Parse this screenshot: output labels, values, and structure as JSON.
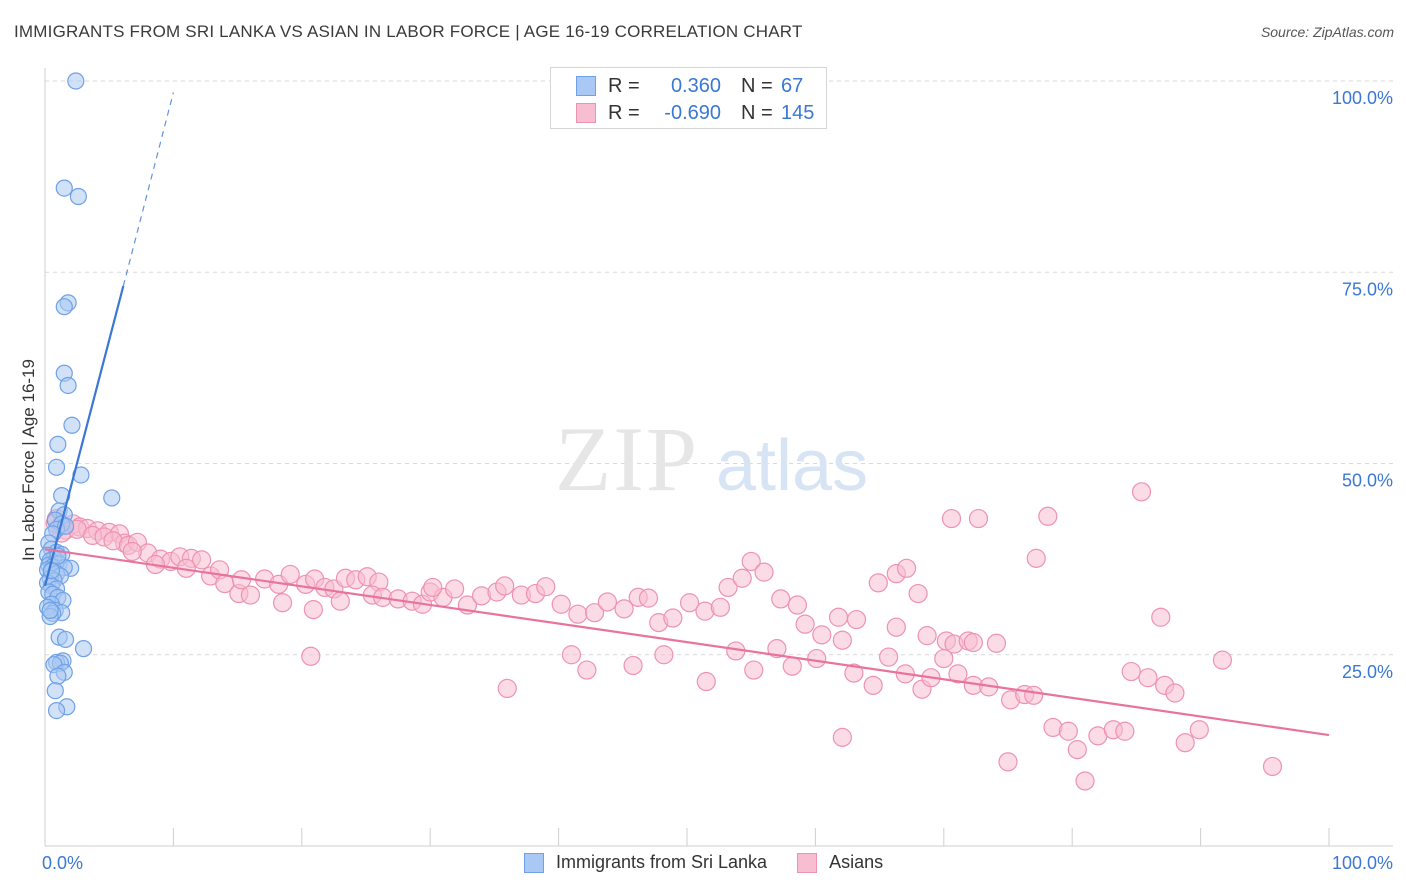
{
  "header": {
    "title": "IMMIGRANTS FROM SRI LANKA VS ASIAN IN LABOR FORCE | AGE 16-19 CORRELATION CHART",
    "source": "Source: ZipAtlas.com"
  },
  "watermark": {
    "zip": "ZIP",
    "atlas": "atlas"
  },
  "legend_top": {
    "rows": [
      {
        "r_label": "R =",
        "r_value": "0.360",
        "n_label": "N =",
        "n_value": "67"
      },
      {
        "r_label": "R =",
        "r_value": "-0.690",
        "n_label": "N =",
        "n_value": "145"
      }
    ]
  },
  "legend_bottom": {
    "items": [
      "Immigrants from Sri Lanka",
      "Asians"
    ]
  },
  "colors": {
    "blue_fill": "#a9c8f3",
    "blue_stroke": "#6fa1e6",
    "blue_line": "#3a78d4",
    "pink_fill": "#f7bdd0",
    "pink_stroke": "#ee92b2",
    "pink_line": "#e8739e",
    "tick_label": "#3a78d4",
    "grid": "#d9d9d9"
  },
  "chart_data": {
    "type": "scatter",
    "title": "IMMIGRANTS FROM SRI LANKA VS ASIAN IN LABOR FORCE | AGE 16-19 CORRELATION CHART",
    "xlabel": "",
    "ylabel": "In Labor Force | Age 16-19",
    "xlim": [
      0,
      100
    ],
    "ylim": [
      0,
      100
    ],
    "x_tick_labels": [
      "0.0%",
      "100.0%"
    ],
    "y_tick_labels": [
      "25.0%",
      "50.0%",
      "75.0%",
      "100.0%"
    ],
    "y_ticks": [
      25,
      50,
      75,
      100
    ],
    "grid": "horizontal dashed",
    "legend_position": "top-center",
    "series": [
      {
        "name": "Immigrants from Sri Lanka",
        "r": 0.36,
        "n": 67,
        "trend": {
          "x0": 0,
          "y0": 34,
          "x1": 6.1,
          "y1": 73.2,
          "dashed_to": [
            10,
            98.5
          ]
        },
        "points": [
          [
            2.4,
            100.0
          ],
          [
            1.5,
            86.0
          ],
          [
            2.6,
            84.9
          ],
          [
            1.8,
            71.0
          ],
          [
            1.5,
            70.5
          ],
          [
            1.5,
            61.8
          ],
          [
            1.8,
            60.2
          ],
          [
            2.1,
            55.0
          ],
          [
            1.0,
            52.5
          ],
          [
            0.9,
            49.5
          ],
          [
            2.8,
            48.5
          ],
          [
            1.3,
            45.8
          ],
          [
            5.2,
            45.5
          ],
          [
            1.1,
            43.8
          ],
          [
            1.5,
            43.3
          ],
          [
            0.8,
            42.6
          ],
          [
            1.3,
            42.1
          ],
          [
            0.9,
            41.4
          ],
          [
            1.6,
            41.8
          ],
          [
            0.6,
            40.8
          ],
          [
            0.3,
            39.6
          ],
          [
            0.5,
            38.8
          ],
          [
            0.9,
            38.4
          ],
          [
            1.3,
            38.1
          ],
          [
            0.2,
            38.0
          ],
          [
            0.7,
            37.6
          ],
          [
            0.4,
            37.3
          ],
          [
            0.8,
            37.0
          ],
          [
            1.1,
            36.9
          ],
          [
            0.3,
            36.7
          ],
          [
            0.6,
            36.5
          ],
          [
            2.0,
            36.3
          ],
          [
            1.5,
            36.4
          ],
          [
            0.2,
            36.1
          ],
          [
            0.5,
            35.9
          ],
          [
            0.9,
            35.6
          ],
          [
            1.2,
            35.3
          ],
          [
            0.4,
            35.0
          ],
          [
            0.7,
            34.7
          ],
          [
            0.2,
            34.4
          ],
          [
            0.5,
            34.0
          ],
          [
            0.9,
            33.6
          ],
          [
            0.3,
            33.2
          ],
          [
            0.6,
            32.9
          ],
          [
            1.0,
            32.5
          ],
          [
            1.4,
            32.1
          ],
          [
            0.5,
            31.6
          ],
          [
            0.2,
            31.2
          ],
          [
            0.8,
            30.8
          ],
          [
            1.3,
            30.5
          ],
          [
            0.6,
            30.4
          ],
          [
            0.4,
            30.0
          ],
          [
            1.1,
            27.3
          ],
          [
            1.6,
            27.0
          ],
          [
            3.0,
            25.8
          ],
          [
            1.4,
            24.2
          ],
          [
            0.9,
            24.0
          ],
          [
            1.2,
            23.9
          ],
          [
            0.7,
            23.7
          ],
          [
            1.5,
            22.7
          ],
          [
            1.0,
            22.2
          ],
          [
            0.8,
            20.3
          ],
          [
            1.7,
            18.2
          ],
          [
            0.9,
            17.7
          ],
          [
            0.4,
            30.8
          ],
          [
            1.0,
            37.9
          ],
          [
            0.5,
            36.0
          ]
        ]
      },
      {
        "name": "Asians",
        "r": -0.69,
        "n": 145,
        "trend": {
          "x0": 0,
          "y0": 38.8,
          "x1": 100,
          "y1": 14.5
        },
        "points": [
          [
            0.9,
            42.8
          ],
          [
            1.2,
            41.9
          ],
          [
            1.6,
            41.3
          ],
          [
            2.2,
            42.1
          ],
          [
            2.7,
            41.7
          ],
          [
            3.3,
            41.5
          ],
          [
            4.1,
            41.2
          ],
          [
            5.0,
            41.0
          ],
          [
            5.8,
            40.8
          ],
          [
            6.2,
            39.6
          ],
          [
            1.3,
            40.9
          ],
          [
            0.8,
            42.2
          ],
          [
            2.5,
            41.4
          ],
          [
            3.7,
            40.6
          ],
          [
            4.6,
            40.4
          ],
          [
            5.3,
            39.9
          ],
          [
            6.5,
            39.3
          ],
          [
            7.2,
            39.7
          ],
          [
            8.0,
            38.3
          ],
          [
            9.0,
            37.5
          ],
          [
            9.8,
            37.2
          ],
          [
            10.5,
            37.8
          ],
          [
            11.4,
            37.6
          ],
          [
            12.2,
            37.4
          ],
          [
            12.9,
            35.3
          ],
          [
            13.6,
            36.1
          ],
          [
            6.8,
            38.5
          ],
          [
            8.6,
            36.8
          ],
          [
            11.0,
            36.3
          ],
          [
            14.0,
            34.3
          ],
          [
            15.1,
            33.0
          ],
          [
            16.0,
            32.8
          ],
          [
            15.3,
            34.8
          ],
          [
            17.1,
            34.9
          ],
          [
            18.2,
            34.2
          ],
          [
            19.1,
            35.5
          ],
          [
            20.3,
            34.2
          ],
          [
            21.0,
            34.9
          ],
          [
            21.8,
            33.8
          ],
          [
            22.5,
            33.6
          ],
          [
            23.4,
            35.0
          ],
          [
            24.2,
            34.8
          ],
          [
            25.1,
            35.2
          ],
          [
            26.0,
            34.5
          ],
          [
            18.5,
            31.8
          ],
          [
            20.9,
            30.9
          ],
          [
            23.0,
            32.0
          ],
          [
            25.5,
            32.8
          ],
          [
            26.3,
            32.5
          ],
          [
            27.5,
            32.3
          ],
          [
            28.6,
            32.0
          ],
          [
            29.4,
            31.6
          ],
          [
            30.0,
            33.2
          ],
          [
            31.0,
            32.5
          ],
          [
            31.9,
            33.6
          ],
          [
            32.9,
            31.5
          ],
          [
            34.0,
            32.7
          ],
          [
            35.2,
            33.2
          ],
          [
            35.8,
            34.0
          ],
          [
            37.1,
            32.8
          ],
          [
            38.2,
            33.0
          ],
          [
            39.0,
            33.9
          ],
          [
            40.2,
            31.6
          ],
          [
            41.5,
            30.3
          ],
          [
            42.8,
            30.5
          ],
          [
            43.8,
            31.9
          ],
          [
            45.1,
            31.0
          ],
          [
            46.2,
            32.5
          ],
          [
            47.0,
            32.4
          ],
          [
            47.8,
            29.2
          ],
          [
            48.9,
            29.8
          ],
          [
            50.2,
            31.8
          ],
          [
            51.4,
            30.7
          ],
          [
            52.6,
            31.2
          ],
          [
            53.2,
            33.8
          ],
          [
            54.3,
            35.0
          ],
          [
            55.0,
            37.2
          ],
          [
            56.0,
            35.8
          ],
          [
            57.3,
            32.3
          ],
          [
            58.6,
            31.5
          ],
          [
            59.2,
            29.0
          ],
          [
            60.5,
            27.6
          ],
          [
            61.8,
            29.9
          ],
          [
            62.1,
            26.9
          ],
          [
            63.2,
            29.6
          ],
          [
            64.9,
            34.4
          ],
          [
            66.3,
            35.6
          ],
          [
            67.1,
            36.3
          ],
          [
            68.0,
            33.0
          ],
          [
            68.7,
            27.5
          ],
          [
            70.2,
            26.8
          ],
          [
            70.8,
            26.4
          ],
          [
            71.9,
            26.8
          ],
          [
            72.3,
            26.6
          ],
          [
            74.1,
            26.5
          ],
          [
            77.2,
            37.6
          ],
          [
            78.1,
            43.1
          ],
          [
            70.6,
            42.8
          ],
          [
            72.7,
            42.8
          ],
          [
            66.3,
            28.6
          ],
          [
            63.0,
            22.6
          ],
          [
            64.5,
            21.0
          ],
          [
            65.7,
            24.7
          ],
          [
            67.0,
            22.5
          ],
          [
            68.3,
            20.5
          ],
          [
            69.0,
            22.0
          ],
          [
            70.0,
            24.5
          ],
          [
            71.1,
            22.5
          ],
          [
            72.3,
            21.0
          ],
          [
            73.5,
            20.8
          ],
          [
            75.2,
            19.1
          ],
          [
            76.3,
            19.8
          ],
          [
            77.0,
            19.7
          ],
          [
            78.5,
            15.5
          ],
          [
            79.7,
            15.0
          ],
          [
            80.4,
            12.6
          ],
          [
            82.0,
            14.4
          ],
          [
            83.2,
            15.2
          ],
          [
            84.1,
            15.0
          ],
          [
            86.9,
            29.9
          ],
          [
            88.8,
            13.5
          ],
          [
            89.9,
            15.2
          ],
          [
            95.6,
            10.4
          ],
          [
            91.7,
            24.3
          ],
          [
            85.4,
            46.3
          ],
          [
            62.1,
            14.2
          ],
          [
            75.0,
            11.0
          ],
          [
            81.0,
            8.5
          ],
          [
            84.6,
            22.8
          ],
          [
            85.9,
            22.0
          ],
          [
            87.2,
            21.0
          ],
          [
            88.0,
            20.0
          ],
          [
            20.7,
            24.8
          ],
          [
            36.0,
            20.6
          ],
          [
            41.0,
            25.0
          ],
          [
            42.2,
            23.0
          ],
          [
            45.8,
            23.6
          ],
          [
            48.2,
            25.0
          ],
          [
            51.5,
            21.5
          ],
          [
            53.8,
            25.5
          ],
          [
            55.2,
            23.0
          ],
          [
            57.0,
            25.8
          ],
          [
            58.2,
            23.5
          ],
          [
            60.1,
            24.5
          ],
          [
            30.2,
            33.8
          ]
        ]
      }
    ]
  }
}
